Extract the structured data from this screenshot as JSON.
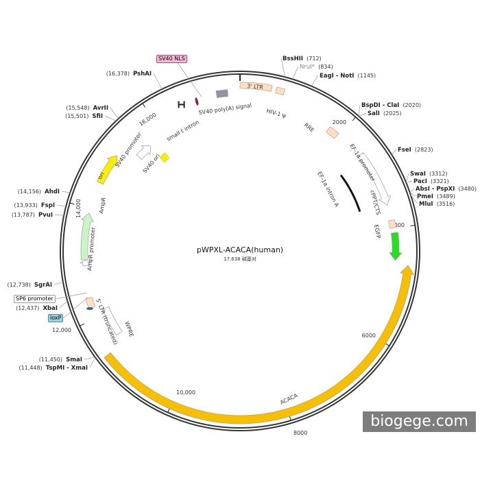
{
  "plasmid": {
    "name": "pWPXL-ACACA(human)",
    "length_label": "17,638 碱基对",
    "length_bp": 17638
  },
  "ticks": [
    "2000",
    "4000",
    "6000",
    "8000",
    "10,000",
    "12,000",
    "14,000",
    "16,000"
  ],
  "sites": [
    {
      "name": "BssHII",
      "pos": "(712)",
      "bp": 712
    },
    {
      "name": "NruI*",
      "pos": "(834)",
      "bp": 834,
      "grey": true
    },
    {
      "name": "EagI - NotI",
      "pos": "(1145)",
      "bp": 1145
    },
    {
      "name": "BspDI - ClaI",
      "pos": "(2020)",
      "bp": 2020
    },
    {
      "name": "SalI",
      "pos": "(2025)",
      "bp": 2025
    },
    {
      "name": "FseI",
      "pos": "(2823)",
      "bp": 2823
    },
    {
      "name": "SwaI",
      "pos": "(3312)",
      "bp": 3312
    },
    {
      "name": "PacI",
      "pos": "(3321)",
      "bp": 3321
    },
    {
      "name": "AbsI - PspXI",
      "pos": "(3480)",
      "bp": 3480
    },
    {
      "name": "PmeI",
      "pos": "(3489)",
      "bp": 3489
    },
    {
      "name": "MluI",
      "pos": "(3516)",
      "bp": 3516
    },
    {
      "name": "SmaI",
      "pos": "(11,450)",
      "bp": 11450
    },
    {
      "name": "TspMI - XmaI",
      "pos": "(11,448)",
      "bp": 11448
    },
    {
      "name": "XbaI",
      "pos": "(12,437)",
      "bp": 12437
    },
    {
      "name": "SgrAI",
      "pos": "(12,738)",
      "bp": 12738
    },
    {
      "name": "PvuI",
      "pos": "(13,787)",
      "bp": 13787
    },
    {
      "name": "FspI",
      "pos": "(13,933)",
      "bp": 13933
    },
    {
      "name": "AhdI",
      "pos": "(14,156)",
      "bp": 14156
    },
    {
      "name": "SfiI",
      "pos": "(15,501)",
      "bp": 15501
    },
    {
      "name": "AvrII",
      "pos": "(15,548)",
      "bp": 15548
    },
    {
      "name": "PshAI",
      "pos": "(16,378)",
      "bp": 16378
    }
  ],
  "tags": [
    {
      "name": "SV40 NLS",
      "bp": 16950,
      "bg": "#f2bcd4",
      "border": "#b0447a"
    },
    {
      "name": "SP6 promoter",
      "bp": 12480,
      "bg": "#ffffff",
      "border": "#999999"
    },
    {
      "name": "loxP",
      "bp": 12400,
      "bg": "#9fd0dc",
      "border": "#4a8fa0"
    }
  ],
  "features": [
    {
      "name": "3' LTR",
      "start": 0,
      "end": 540,
      "color": "#fde0c0",
      "type": "box"
    },
    {
      "name": "HIV-1 ψ",
      "start": 620,
      "end": 760,
      "color": "#fde0c0",
      "type": "box"
    },
    {
      "name": "RRE",
      "start": 1760,
      "end": 1960,
      "color": "#fde0c0",
      "type": "box"
    },
    {
      "name": "EF-1α promoter",
      "start": 2520,
      "end": 3560,
      "color": "#ffffff",
      "type": "arrow"
    },
    {
      "name": "EF-1α intron A",
      "start": 2600,
      "end": 3520,
      "color": "#111111",
      "type": "line"
    },
    {
      "name": "cPPT/CTS",
      "start": 3850,
      "end": 3990,
      "color": "#fde0c0",
      "type": "box"
    },
    {
      "name": "EGFP",
      "start": 4080,
      "end": 4580,
      "color": "#22e022",
      "type": "arrow"
    },
    {
      "name": "ACACA",
      "start": 4650,
      "end": 11360,
      "color": "#f5c000",
      "type": "arrow",
      "dir": -1
    },
    {
      "name": "WPRE",
      "start": 11550,
      "end": 12100,
      "color": "#ffffff",
      "type": "box"
    },
    {
      "name": "5' LTR (truncated)",
      "start": 12200,
      "end": 12380,
      "color": "#fde0c0",
      "type": "box"
    },
    {
      "name": "AmpR promoter",
      "start": 12960,
      "end": 13060,
      "color": "#ffffff",
      "type": "arrow"
    },
    {
      "name": "AmpR",
      "start": 13070,
      "end": 13920,
      "color": "#c8f5c8",
      "type": "arrow"
    },
    {
      "name": "ori",
      "start": 14500,
      "end": 15080,
      "color": "#f5f000",
      "type": "arrow"
    },
    {
      "name": "SV40 promoter",
      "start": 15330,
      "end": 15660,
      "color": "#ffffff",
      "type": "arrow"
    },
    {
      "name": "SV40 ori",
      "start": 15660,
      "end": 15800,
      "color": "#f5f000",
      "type": "diamond"
    },
    {
      "name": "small t intron",
      "start": 16500,
      "end": 16640,
      "color": "#222222",
      "type": "hbar"
    },
    {
      "name": "SV40 poly(A) signal",
      "start": 17220,
      "end": 17420,
      "color": "#8b96a3",
      "type": "box"
    }
  ],
  "watermark": "biogege.com"
}
